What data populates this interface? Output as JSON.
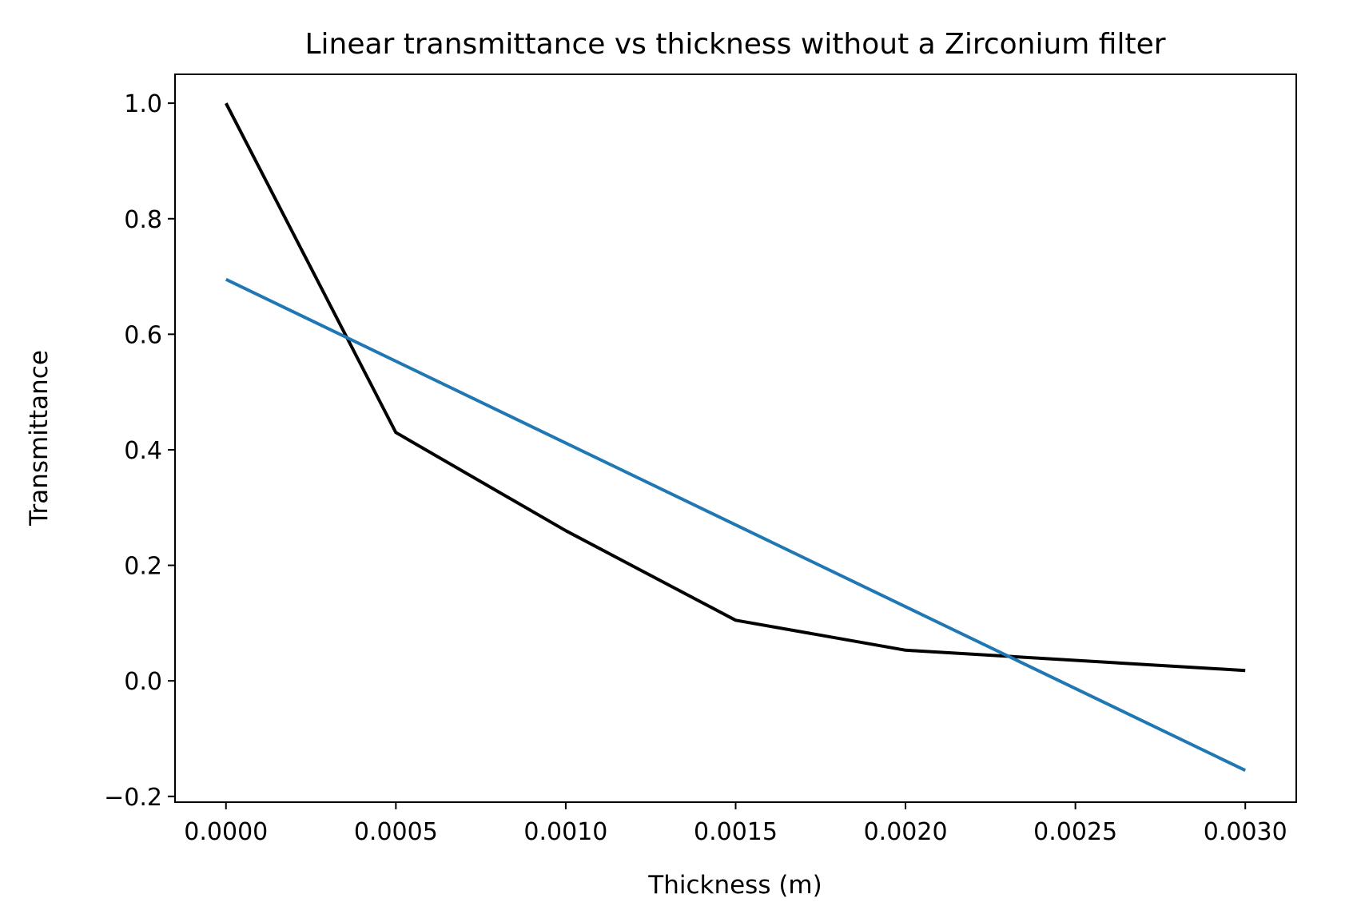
{
  "chart_data": {
    "type": "line",
    "title": "Linear transmittance vs thickness without a Zirconium filter",
    "xlabel": "Thickness (m)",
    "ylabel": "Transmittance",
    "xlim": [
      -0.00015,
      0.00315
    ],
    "ylim": [
      -0.21,
      1.05
    ],
    "x_ticks": [
      0.0,
      0.0005,
      0.001,
      0.0015,
      0.002,
      0.0025,
      0.003
    ],
    "x_tick_labels": [
      "0.0000",
      "0.0005",
      "0.0010",
      "0.0015",
      "0.0020",
      "0.0025",
      "0.0030"
    ],
    "y_ticks": [
      -0.2,
      0.0,
      0.2,
      0.4,
      0.6,
      0.8,
      1.0
    ],
    "y_tick_labels": [
      "−0.2",
      "0.0",
      "0.2",
      "0.4",
      "0.6",
      "0.8",
      "1.0"
    ],
    "grid": false,
    "series": [
      {
        "color": "#000000",
        "x": [
          0.0,
          0.0005,
          0.001,
          0.0015,
          0.002,
          0.003
        ],
        "y": [
          1.0,
          0.43,
          0.26,
          0.105,
          0.053,
          0.018
        ]
      },
      {
        "color": "#1f77b4",
        "x": [
          0.0,
          0.003
        ],
        "y": [
          0.695,
          -0.155
        ]
      }
    ]
  }
}
